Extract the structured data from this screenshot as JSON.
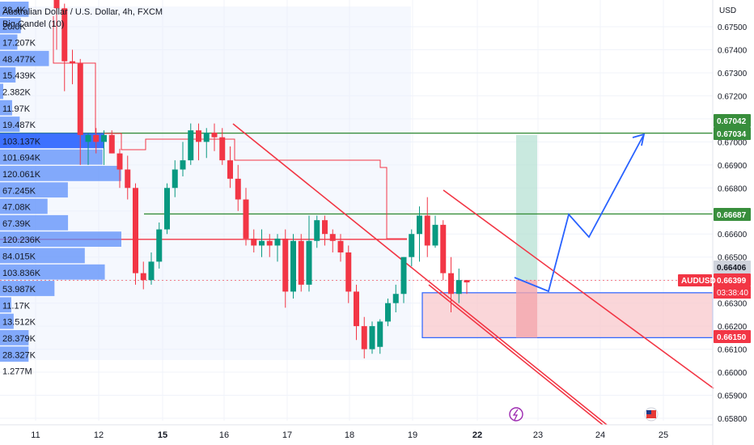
{
  "header": {
    "title": "Australian Dollar / U.S. Dollar, 4h, FXCM",
    "indicator": "Big Candel (10)"
  },
  "axis": {
    "currency": "USD",
    "price_ticks": [
      "0.67500",
      "0.67400",
      "0.67300",
      "0.67200",
      "0.67100",
      "0.67000",
      "0.66900",
      "0.66800",
      "0.66700",
      "0.66600",
      "0.66500",
      "0.66400",
      "0.66300",
      "0.66200",
      "0.66100",
      "0.66000",
      "0.65900",
      "0.65800"
    ],
    "date_ticks": [
      "11",
      "12",
      "15",
      "16",
      "17",
      "18",
      "19",
      "22",
      "23",
      "24",
      "25"
    ]
  },
  "price_labels": {
    "upper_green_top": "0.67042",
    "upper_green_bottom": "0.67034",
    "mid_green": "0.66687",
    "grey_level": "0.66406",
    "symbol": "AUDUSD",
    "current": "0.66399",
    "countdown": "03:38:40",
    "lower_blue": "0.66150"
  },
  "colors": {
    "bull": "#089981",
    "bear": "#f23645",
    "volume_bar": "#5b8ff9",
    "volume_highlight": "#2962ff",
    "green_line": "#388e3c",
    "red_line": "#f23645",
    "blue_projection": "#2962ff",
    "zone_red": "#f8c8cc",
    "zone_green": "#b2dfd2",
    "grid": "#f0f3fa"
  },
  "chart_data": {
    "type": "candlestick",
    "title": "Australian Dollar / U.S. Dollar, 4h, FXCM",
    "yrange": [
      0.6576,
      0.6759
    ],
    "volume_profile": [
      "28.4K",
      "20.6K",
      "17.207K",
      "48.477K",
      "15.439K",
      "2.382K",
      "11.97K",
      "19.487K",
      "103.137K",
      "101.694K",
      "120.061K",
      "67.245K",
      "47.08K",
      "67.39K",
      "120.236K",
      "84.015K",
      "103.836K",
      "53.987K",
      "11.17K",
      "13.512K",
      "28.379K",
      "28.327K",
      "1.277M"
    ],
    "candles": [
      {
        "o": 0.6762,
        "h": 0.677,
        "l": 0.674,
        "c": 0.6758
      },
      {
        "o": 0.6758,
        "h": 0.676,
        "l": 0.6722,
        "c": 0.6735
      },
      {
        "o": 0.6735,
        "h": 0.674,
        "l": 0.6725,
        "c": 0.6734
      },
      {
        "o": 0.6734,
        "h": 0.6736,
        "l": 0.669,
        "c": 0.6703
      },
      {
        "o": 0.67,
        "h": 0.6704,
        "l": 0.669,
        "c": 0.6703
      },
      {
        "o": 0.6703,
        "h": 0.6706,
        "l": 0.6695,
        "c": 0.67
      },
      {
        "o": 0.67,
        "h": 0.6705,
        "l": 0.669,
        "c": 0.6703
      },
      {
        "o": 0.6703,
        "h": 0.6705,
        "l": 0.6695,
        "c": 0.6695
      },
      {
        "o": 0.6695,
        "h": 0.6697,
        "l": 0.668,
        "c": 0.6688
      },
      {
        "o": 0.6688,
        "h": 0.6694,
        "l": 0.6675,
        "c": 0.668
      },
      {
        "o": 0.668,
        "h": 0.6682,
        "l": 0.6638,
        "c": 0.6643
      },
      {
        "o": 0.6643,
        "h": 0.6648,
        "l": 0.6636,
        "c": 0.664
      },
      {
        "o": 0.664,
        "h": 0.6652,
        "l": 0.6638,
        "c": 0.6648
      },
      {
        "o": 0.6648,
        "h": 0.6665,
        "l": 0.6645,
        "c": 0.6662
      },
      {
        "o": 0.6662,
        "h": 0.6682,
        "l": 0.666,
        "c": 0.668
      },
      {
        "o": 0.668,
        "h": 0.6692,
        "l": 0.6676,
        "c": 0.6688
      },
      {
        "o": 0.6688,
        "h": 0.67,
        "l": 0.6685,
        "c": 0.6692
      },
      {
        "o": 0.6692,
        "h": 0.6708,
        "l": 0.669,
        "c": 0.6705
      },
      {
        "o": 0.6705,
        "h": 0.6708,
        "l": 0.6692,
        "c": 0.67
      },
      {
        "o": 0.67,
        "h": 0.6706,
        "l": 0.6693,
        "c": 0.6704
      },
      {
        "o": 0.6704,
        "h": 0.6708,
        "l": 0.6696,
        "c": 0.6702
      },
      {
        "o": 0.6702,
        "h": 0.6706,
        "l": 0.669,
        "c": 0.6692
      },
      {
        "o": 0.6692,
        "h": 0.6698,
        "l": 0.668,
        "c": 0.6684
      },
      {
        "o": 0.6684,
        "h": 0.669,
        "l": 0.667,
        "c": 0.6675
      },
      {
        "o": 0.6675,
        "h": 0.668,
        "l": 0.6655,
        "c": 0.6658
      },
      {
        "o": 0.6658,
        "h": 0.6662,
        "l": 0.6652,
        "c": 0.6655
      },
      {
        "o": 0.6655,
        "h": 0.6662,
        "l": 0.665,
        "c": 0.6657
      },
      {
        "o": 0.6657,
        "h": 0.666,
        "l": 0.665,
        "c": 0.6655
      },
      {
        "o": 0.6655,
        "h": 0.666,
        "l": 0.6648,
        "c": 0.6658
      },
      {
        "o": 0.6658,
        "h": 0.6662,
        "l": 0.6628,
        "c": 0.6635
      },
      {
        "o": 0.6635,
        "h": 0.666,
        "l": 0.6632,
        "c": 0.6657
      },
      {
        "o": 0.6657,
        "h": 0.666,
        "l": 0.6635,
        "c": 0.6638
      },
      {
        "o": 0.6638,
        "h": 0.6668,
        "l": 0.6635,
        "c": 0.6657
      },
      {
        "o": 0.6657,
        "h": 0.6668,
        "l": 0.6654,
        "c": 0.6666
      },
      {
        "o": 0.6666,
        "h": 0.6668,
        "l": 0.6655,
        "c": 0.666
      },
      {
        "o": 0.666,
        "h": 0.6662,
        "l": 0.6652,
        "c": 0.6657
      },
      {
        "o": 0.6657,
        "h": 0.666,
        "l": 0.6648,
        "c": 0.6652
      },
      {
        "o": 0.6652,
        "h": 0.6655,
        "l": 0.663,
        "c": 0.6635
      },
      {
        "o": 0.6635,
        "h": 0.6638,
        "l": 0.6614,
        "c": 0.662
      },
      {
        "o": 0.662,
        "h": 0.6624,
        "l": 0.6606,
        "c": 0.661
      },
      {
        "o": 0.661,
        "h": 0.6622,
        "l": 0.6608,
        "c": 0.662
      },
      {
        "o": 0.6611,
        "h": 0.6623,
        "l": 0.6608,
        "c": 0.6622
      },
      {
        "o": 0.6622,
        "h": 0.6632,
        "l": 0.662,
        "c": 0.663
      },
      {
        "o": 0.663,
        "h": 0.6638,
        "l": 0.6626,
        "c": 0.6634
      },
      {
        "o": 0.6634,
        "h": 0.665,
        "l": 0.663,
        "c": 0.665
      },
      {
        "o": 0.665,
        "h": 0.6662,
        "l": 0.6646,
        "c": 0.666
      },
      {
        "o": 0.666,
        "h": 0.6672,
        "l": 0.6648,
        "c": 0.6668
      },
      {
        "o": 0.6668,
        "h": 0.6676,
        "l": 0.665,
        "c": 0.6655
      },
      {
        "o": 0.6655,
        "h": 0.6668,
        "l": 0.6654,
        "c": 0.6664
      },
      {
        "o": 0.6664,
        "h": 0.6666,
        "l": 0.664,
        "c": 0.6643
      },
      {
        "o": 0.6643,
        "h": 0.665,
        "l": 0.6626,
        "c": 0.6634
      },
      {
        "o": 0.6634,
        "h": 0.6645,
        "l": 0.663,
        "c": 0.664
      },
      {
        "o": 0.664,
        "h": 0.664,
        "l": 0.6634,
        "c": 0.6639
      }
    ],
    "horizontal_levels": [
      0.67038,
      0.66687,
      0.66577
    ],
    "zones": [
      {
        "kind": "red",
        "from": 0.6615,
        "to": 0.66345
      },
      {
        "kind": "green",
        "from": 0.66399,
        "to": 0.6703
      }
    ],
    "projection": [
      0.66406,
      0.66345,
      0.6668,
      0.6658,
      0.6703
    ],
    "grid": true
  }
}
